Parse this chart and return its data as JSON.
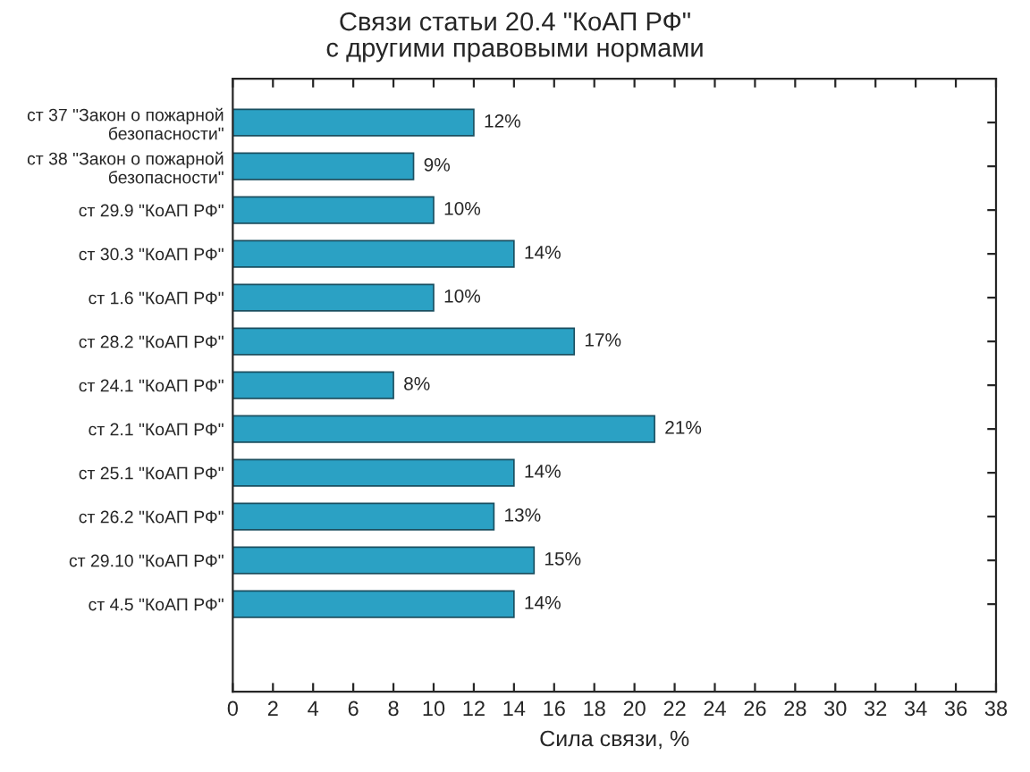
{
  "chart_data": {
    "type": "bar",
    "orientation": "horizontal",
    "title": "Связи статьи 20.4 \"КоАП РФ\"\nс другими правовыми нормами",
    "xlabel": "Сила связи, %",
    "categories": [
      "ст 37 \"Закон о пожарной\nбезопасности\"",
      "ст 38 \"Закон о пожарной\nбезопасности\"",
      "ст 29.9 \"КоАП РФ\"",
      "ст 30.3 \"КоАП РФ\"",
      "ст 1.6 \"КоАП РФ\"",
      "ст 28.2 \"КоАП РФ\"",
      "ст 24.1 \"КоАП РФ\"",
      "ст 2.1 \"КоАП РФ\"",
      "ст 25.1 \"КоАП РФ\"",
      "ст 26.2 \"КоАП РФ\"",
      "ст 29.10 \"КоАП РФ\"",
      "ст 4.5 \"КоАП РФ\""
    ],
    "values": [
      12,
      9,
      10,
      14,
      10,
      17,
      8,
      21,
      14,
      13,
      15,
      14
    ],
    "value_labels": [
      "12%",
      "9%",
      "10%",
      "14%",
      "10%",
      "17%",
      "8%",
      "21%",
      "14%",
      "13%",
      "15%",
      "14%"
    ],
    "color": "#2ba1c4",
    "xlim": [
      0,
      38
    ],
    "xticks": [
      0,
      2,
      4,
      6,
      8,
      10,
      12,
      14,
      16,
      18,
      20,
      22,
      24,
      26,
      28,
      30,
      32,
      34,
      36,
      38
    ],
    "grid": false,
    "legend": false
  }
}
